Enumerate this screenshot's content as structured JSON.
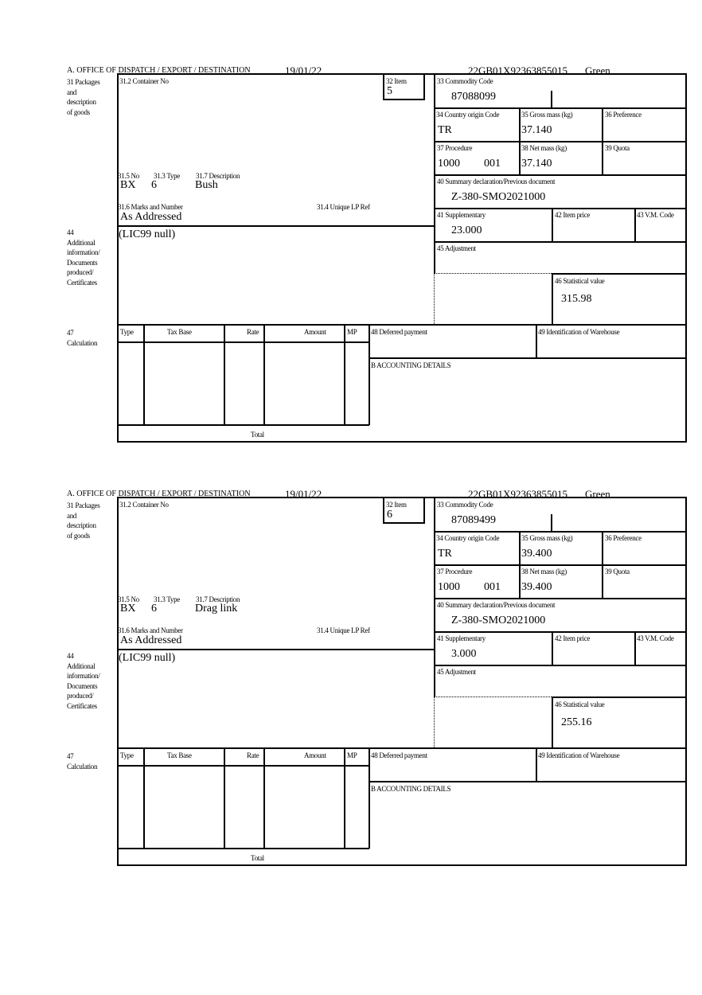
{
  "labels": {
    "office": "A.  OFFICE OF DISPATCH / EXPORT / DESTINATION",
    "l31": [
      "31 Packages",
      "and",
      "description",
      "of goods"
    ],
    "container_no": "31.2 Container No",
    "item": "32 Item",
    "no": "31.5 No",
    "type": "31.3 Type",
    "description": "31.7 Description",
    "marks": "31.6 Marks and Number",
    "unique_lp": "31.4 Unique LP Ref",
    "commodity": "33 Commodity Code",
    "country": "34 Country origin Code",
    "gross": "35 Gross mass (kg)",
    "preference": "36 Preference",
    "procedure": "37 Procedure",
    "net": "38 Net mass (kg)",
    "quota": "39 Quota",
    "summary": "40 Summary declaration/Previous document",
    "supplementary": "41 Supplementary",
    "item_price": "42 Item price",
    "vm_code": "43 V.M. Code",
    "adjustment": "45 Adjustment",
    "statistical": "46 Statistical value",
    "l44": [
      "44",
      "Additional",
      "information/",
      "Documents",
      "produced/",
      "Certificates"
    ],
    "l47": [
      "47",
      "Calculation"
    ],
    "calc_cols": [
      "Type",
      "Tax Base",
      "Rate",
      "Amount",
      "MP"
    ],
    "total": "Total",
    "deferred": "48 Deferred payment",
    "warehouse": "49 Identification of Warehouse",
    "accounting": "B ACCOUNTING DETAILS"
  },
  "blocks": [
    {
      "date": "19/01/22",
      "reference": "22GB01X92363855015",
      "route": "Green",
      "item": "5",
      "pkg_kind": "BX",
      "pkg_count": "6",
      "description": "Bush",
      "marks": "As Addressed",
      "commodity": "87088099",
      "country": "TR",
      "gross": "37.140",
      "procedure": "1000",
      "procedure_add": "001",
      "net": "37.140",
      "summary": "Z-380-SMO2021000",
      "supplementary": "23.000",
      "statistical": "315.98",
      "additional": "(LIC99 null)"
    },
    {
      "date": "19/01/22",
      "reference": "22GB01X92363855015",
      "route": "Green",
      "item": "6",
      "pkg_kind": "BX",
      "pkg_count": "6",
      "description": "Drag link",
      "marks": "As Addressed",
      "commodity": "87089499",
      "country": "TR",
      "gross": "39.400",
      "procedure": "1000",
      "procedure_add": "001",
      "net": "39.400",
      "summary": "Z-380-SMO2021000",
      "supplementary": "3.000",
      "statistical": "255.16",
      "additional": "(LIC99 null)"
    }
  ]
}
